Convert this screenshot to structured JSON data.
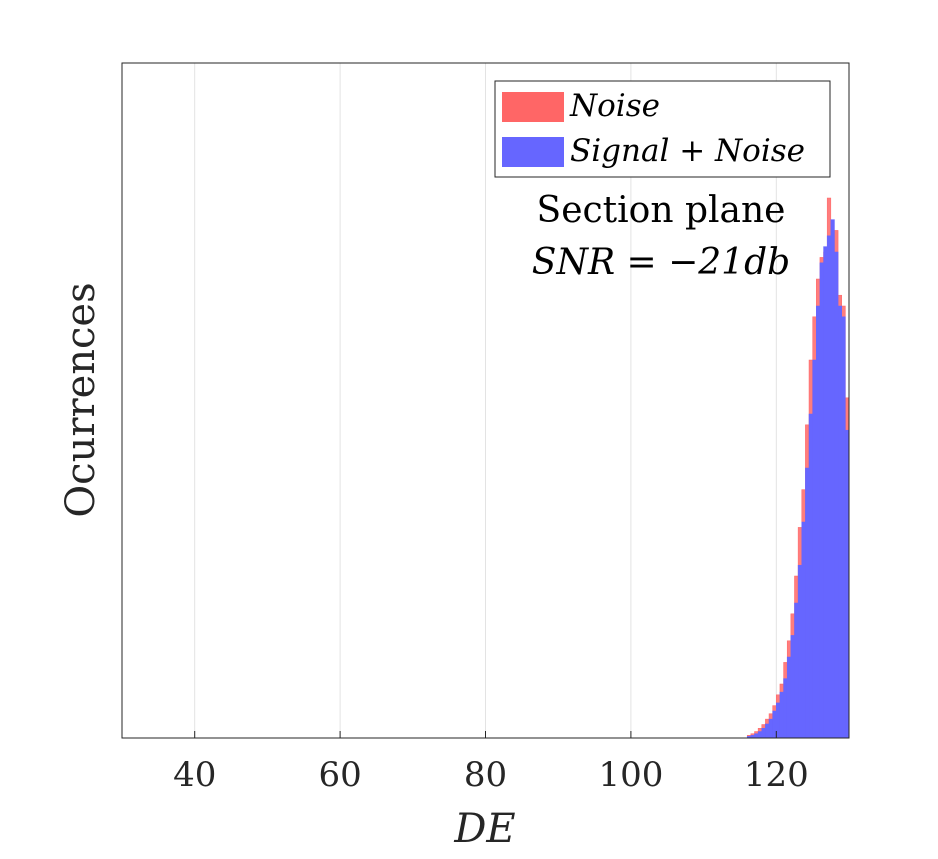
{
  "chart_data": {
    "type": "bar",
    "xlabel": "DE",
    "ylabel": "Ocurrences",
    "xlim": [
      30,
      130
    ],
    "ylim": [
      0,
      1
    ],
    "x_ticks": [
      "40",
      "60",
      "80",
      "100",
      "120"
    ],
    "x_tick_values": [
      40,
      60,
      80,
      100,
      120
    ],
    "grid": "vertical",
    "y_tick_labels_shown": false,
    "legend_position": "top-right",
    "series": [
      {
        "name": "Noise",
        "color": "#ff6666",
        "bin_width": 0.5,
        "bins": [
          [
            116.0,
            0.005
          ],
          [
            116.5,
            0.008
          ],
          [
            117.0,
            0.012
          ],
          [
            117.5,
            0.018
          ],
          [
            118.0,
            0.025
          ],
          [
            118.5,
            0.035
          ],
          [
            119.0,
            0.045
          ],
          [
            119.5,
            0.06
          ],
          [
            120.0,
            0.08
          ],
          [
            120.5,
            0.1
          ],
          [
            121.0,
            0.14
          ],
          [
            121.5,
            0.18
          ],
          [
            122.0,
            0.23
          ],
          [
            122.5,
            0.3
          ],
          [
            123.0,
            0.39
          ],
          [
            123.5,
            0.46
          ],
          [
            124.0,
            0.58
          ],
          [
            124.5,
            0.7
          ],
          [
            125.0,
            0.78
          ],
          [
            125.5,
            0.85
          ],
          [
            126.0,
            0.89
          ],
          [
            126.5,
            0.9
          ],
          [
            127.0,
            1.0
          ],
          [
            127.5,
            0.89
          ],
          [
            128.0,
            0.94
          ],
          [
            128.5,
            0.82
          ],
          [
            129.0,
            0.8
          ],
          [
            129.5,
            0.63
          ]
        ]
      },
      {
        "name": "Signal + Noise",
        "color": "#6666ff",
        "bin_width": 0.5,
        "bins": [
          [
            116.0,
            0.003
          ],
          [
            116.5,
            0.005
          ],
          [
            117.0,
            0.008
          ],
          [
            117.5,
            0.012
          ],
          [
            118.0,
            0.018
          ],
          [
            118.5,
            0.026
          ],
          [
            119.0,
            0.035
          ],
          [
            119.5,
            0.05
          ],
          [
            120.0,
            0.065
          ],
          [
            120.5,
            0.085
          ],
          [
            121.0,
            0.11
          ],
          [
            121.5,
            0.15
          ],
          [
            122.0,
            0.19
          ],
          [
            122.5,
            0.25
          ],
          [
            123.0,
            0.32
          ],
          [
            123.5,
            0.4
          ],
          [
            124.0,
            0.5
          ],
          [
            124.5,
            0.6
          ],
          [
            125.0,
            0.7
          ],
          [
            125.5,
            0.8
          ],
          [
            126.0,
            0.88
          ],
          [
            126.5,
            0.91
          ],
          [
            127.0,
            0.93
          ],
          [
            127.5,
            0.96
          ],
          [
            128.0,
            0.9
          ],
          [
            128.5,
            0.8
          ],
          [
            129.0,
            0.78
          ],
          [
            129.5,
            0.57
          ]
        ]
      }
    ],
    "legend": [
      {
        "label": "Noise",
        "color": "#ff6666"
      },
      {
        "label": "Signal + Noise",
        "color": "#6666ff"
      }
    ],
    "annotation": {
      "line1": "Section plane",
      "line2": "SNR = −21db"
    }
  }
}
